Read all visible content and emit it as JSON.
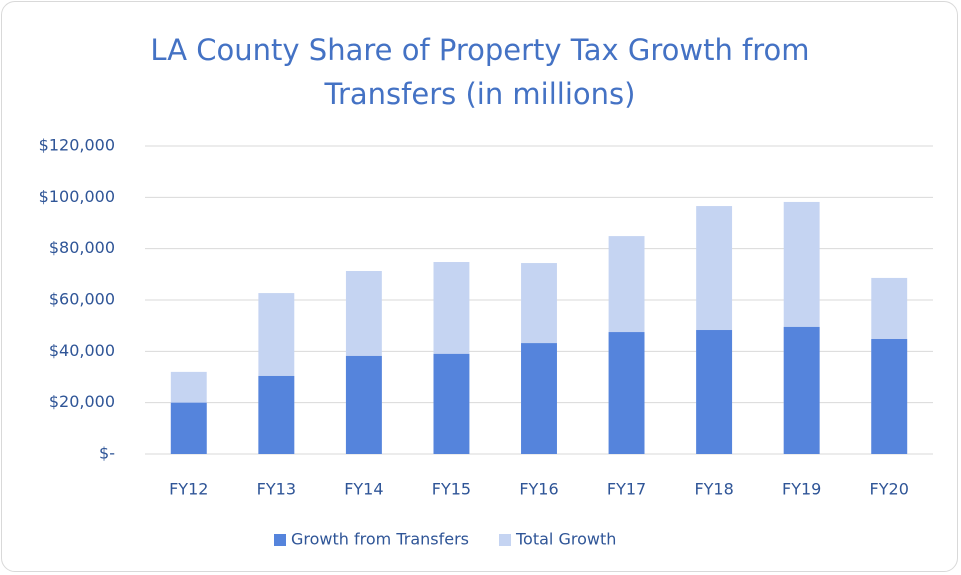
{
  "chart_data": {
    "type": "bar",
    "title": "LA County Share of Property Tax Growth from Transfers (in millions)",
    "categories": [
      "FY12",
      "FY13",
      "FY14",
      "FY15",
      "FY16",
      "FY17",
      "FY18",
      "FY19",
      "FY20"
    ],
    "series": [
      {
        "name": "Growth from Transfers",
        "color": "#5584dc",
        "values": [
          20000,
          30400,
          38200,
          39000,
          43200,
          47500,
          48300,
          49500,
          44800
        ]
      },
      {
        "name": "Total Growth",
        "color": "#c5d4f2",
        "values": [
          32000,
          62700,
          71300,
          74800,
          74400,
          84900,
          96600,
          98200,
          68600
        ]
      }
    ],
    "ylim": [
      0,
      120000
    ],
    "yticks": [
      {
        "value": 0,
        "label": "$-"
      },
      {
        "value": 20000,
        "label": "$20,000"
      },
      {
        "value": 40000,
        "label": "$40,000"
      },
      {
        "value": 60000,
        "label": "$60,000"
      },
      {
        "value": 80000,
        "label": "$80,000"
      },
      {
        "value": 100000,
        "label": "$100,000"
      },
      {
        "value": 120000,
        "label": "$120,000"
      }
    ],
    "grid": true,
    "legend": "bottom"
  }
}
